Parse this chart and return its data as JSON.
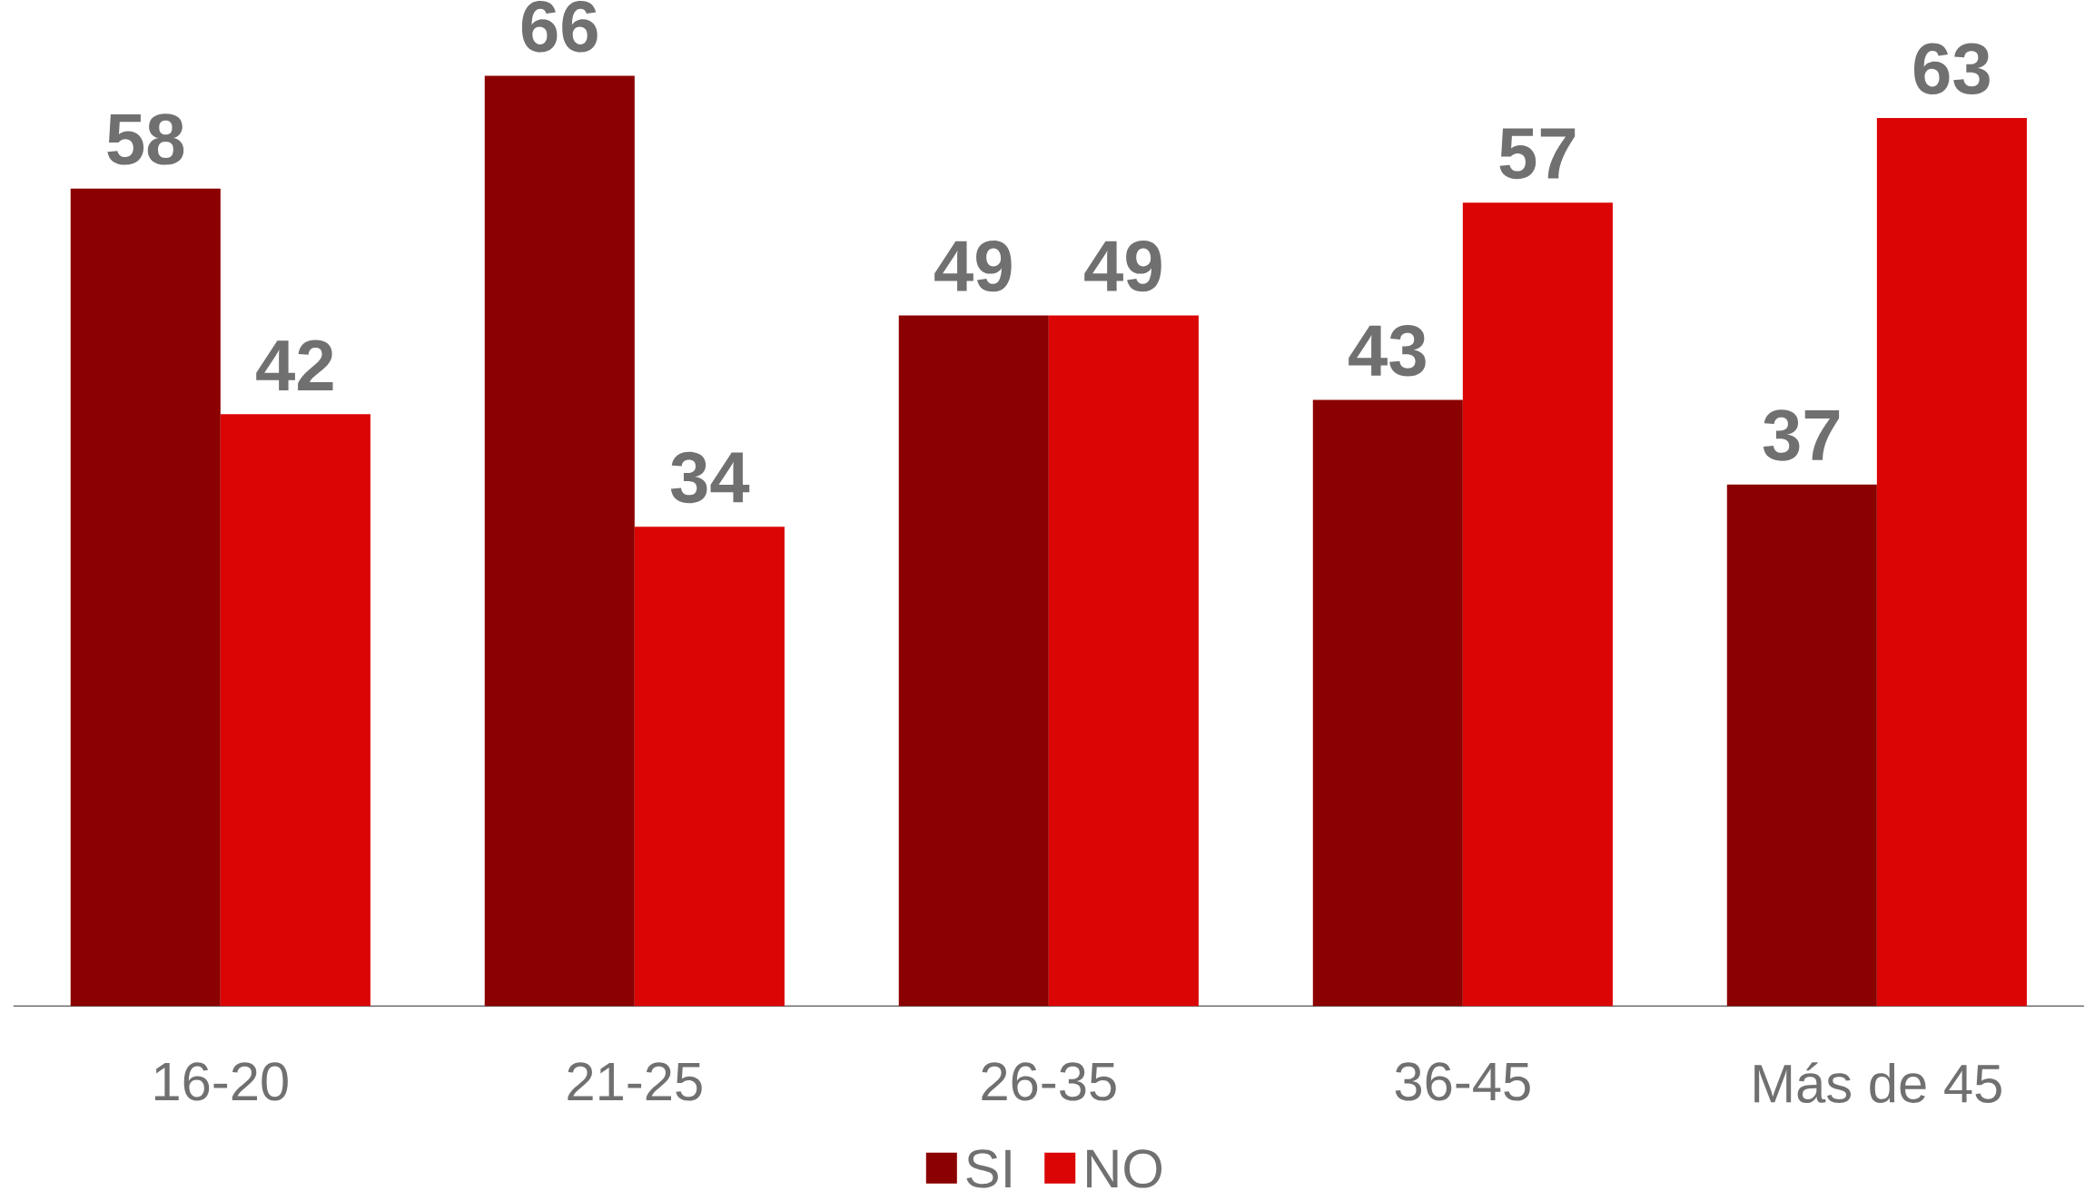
{
  "chart_data": {
    "type": "bar",
    "categories": [
      "16-20",
      "21-25",
      "26-35",
      "36-45",
      "Más de 45"
    ],
    "series": [
      {
        "name": "SI",
        "color": "#8b0000",
        "values": [
          58,
          66,
          49,
          43,
          37
        ]
      },
      {
        "name": "NO",
        "color": "#db0505",
        "values": [
          42,
          34,
          49,
          57,
          63
        ]
      }
    ],
    "data_labels": true,
    "legend": "bottom"
  }
}
